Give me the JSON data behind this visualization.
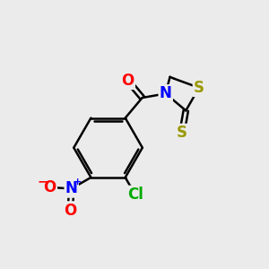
{
  "background_color": "#ebebeb",
  "bond_color": "#000000",
  "bond_width": 1.8,
  "atom_colors": {
    "O": "#ff0000",
    "N": "#0000ff",
    "S": "#999900",
    "Cl": "#00aa00"
  },
  "font_size": 12,
  "font_size_charge": 8
}
